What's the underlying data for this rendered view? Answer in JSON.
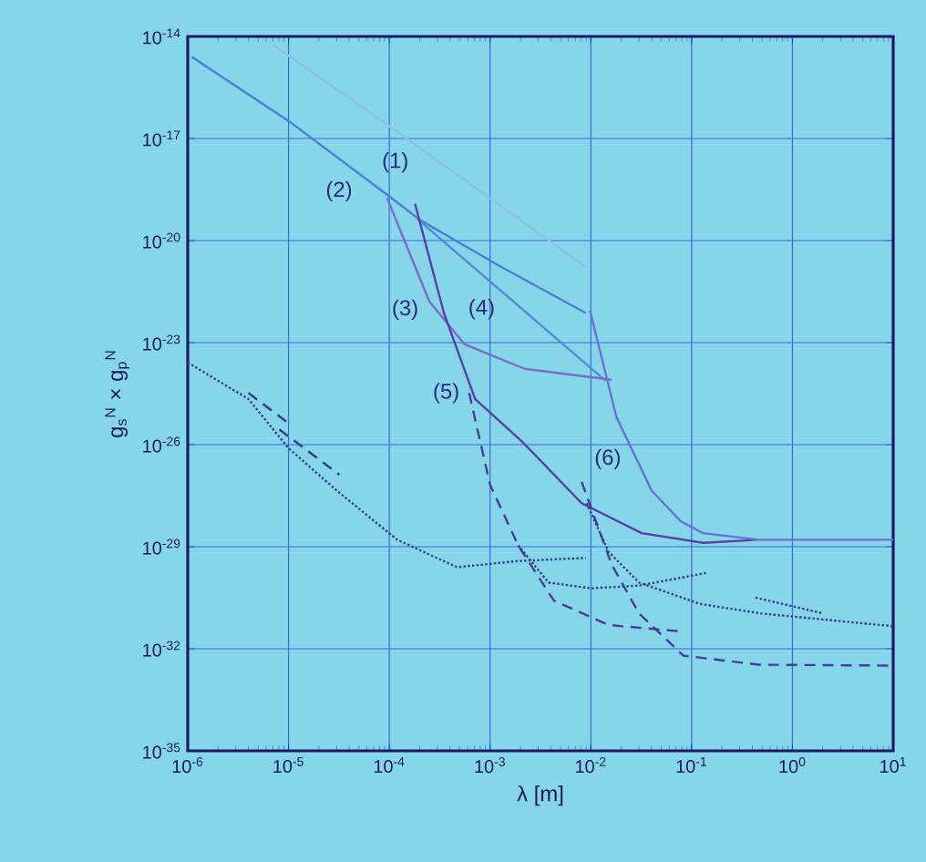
{
  "chart_data": {
    "type": "line",
    "xlabel": "λ [m]",
    "ylabel": "g$_{s}$$^{N}$ × g$_{p}$$^{N}$",
    "log": "xy",
    "grid": true,
    "xlim": [
      1e-06,
      10
    ],
    "ylim": [
      1e-35,
      1e-14
    ],
    "xticks": [
      {
        "value": 1e-06,
        "label": "10$^{-6}$"
      },
      {
        "value": 1e-05,
        "label": "10$^{-5}$"
      },
      {
        "value": 0.0001,
        "label": "10$^{-4}$"
      },
      {
        "value": 0.001,
        "label": "10$^{-3}$"
      },
      {
        "value": 0.01,
        "label": "10$^{-2}$"
      },
      {
        "value": 0.1,
        "label": "10$^{-1}$"
      },
      {
        "value": 1,
        "label": "10$^{0}$"
      },
      {
        "value": 10,
        "label": "10$^{1}$"
      }
    ],
    "yticks": [
      {
        "value": 1e-35,
        "label": "10$^{-35}$"
      },
      {
        "value": 1e-32,
        "label": "10$^{-32}$"
      },
      {
        "value": 1e-29,
        "label": "10$^{-29}$"
      },
      {
        "value": 1e-26,
        "label": "10$^{-26}$"
      },
      {
        "value": 1e-23,
        "label": "10$^{-23}$"
      },
      {
        "value": 1e-20,
        "label": "10$^{-20}$"
      },
      {
        "value": 1e-17,
        "label": "10$^{-17}$"
      },
      {
        "value": 1e-14,
        "label": "10$^{-14}$"
      }
    ],
    "series": [
      {
        "name": "(1)",
        "color": "#8fc0e8",
        "line_style": "solid",
        "x": [
          7.1e-06,
          9.5e-05,
          0.0091
        ],
        "values": [
          5.6e-15,
          2.6e-17,
          1.6e-21
        ]
      },
      {
        "name": "(2)",
        "color": "#4a7fd6",
        "line_style": "solid",
        "x": [
          1.1e-06,
          1e-05,
          8.9e-05,
          0.0002,
          0.0012,
          0.0089
        ],
        "values": [
          2.5e-15,
          3.3e-17,
          2.6e-19,
          4.1e-20,
          1.9e-21,
          7.4e-23
        ]
      },
      {
        "name": "(4)",
        "color": "#5a88d8",
        "line_style": "solid",
        "x": [
          0.00019,
          0.014
        ],
        "values": [
          4.3e-20,
          7.6e-25
        ]
      },
      {
        "name": "(3)",
        "color": "#7a6cc8",
        "line_style": "solid",
        "x": [
          9.5e-05,
          0.00025,
          0.00056,
          0.0022,
          0.016
        ],
        "values": [
          1.8e-19,
          1.6e-22,
          8.9e-24,
          1.7e-24,
          8.1e-25
        ]
      },
      {
        "name": "(5)",
        "color": "#5b3fa8",
        "line_style": "solid",
        "x": [
          0.00018,
          0.00035,
          0.00071,
          0.0021,
          0.0081,
          0.032,
          0.13,
          0.45
        ],
        "values": [
          1.2e-19,
          7.1e-23,
          2.2e-25,
          1.2e-26,
          1.9e-28,
          2.5e-29,
          1.3e-29,
          1.6e-29
        ]
      },
      {
        "name": "(6)",
        "color": "#6a70d8",
        "line_style": "solid",
        "x": [
          0.0098,
          0.018,
          0.027,
          0.04,
          0.078,
          0.13,
          0.47,
          10
        ],
        "values": [
          8.7e-23,
          6.3e-26,
          5.2e-27,
          4.5e-28,
          5.6e-29,
          2.5e-29,
          1.6e-29,
          1.6e-29
        ]
      },
      {
        "color": "#4a3a9a",
        "line_style": "dashed",
        "x": [
          0.00062,
          0.001,
          0.0019,
          0.0043,
          0.015,
          0.083
        ],
        "values": [
          3.3e-25,
          6.6e-28,
          1.1e-29,
          2.6e-31,
          5e-32,
          3.2e-32
        ]
      },
      {
        "color": "#4a3a9a",
        "line_style": "dashed",
        "x": [
          0.0081,
          0.016,
          0.03,
          0.083,
          0.47,
          10
        ],
        "values": [
          8.1e-28,
          3.1e-30,
          1.1e-31,
          6.3e-33,
          3.4e-33,
          3.2e-33
        ]
      },
      {
        "color": "#3a3a8a",
        "line_style": "dotted",
        "x": [
          1e-06,
          4e-06,
          1e-05,
          3e-05,
          0.00012,
          0.00047,
          0.0019,
          0.0089
        ],
        "values": [
          2.6e-24,
          2.2e-25,
          7.9e-27,
          4.5e-28,
          1.6e-29,
          2.5e-30,
          3.8e-30,
          4.7e-30
        ]
      },
      {
        "color": "#3a3a8a",
        "line_style": "dashed",
        "x": [
          4e-06,
          1e-05
        ],
        "values": [
          3.3e-25,
          4.3e-26
        ]
      },
      {
        "color": "#3a3a8a",
        "line_style": "dashed",
        "x": [
          8.1e-06,
          3.2e-05
        ],
        "values": [
          2.8e-26,
          1.3e-27
        ]
      },
      {
        "color": "#3a3a8a",
        "line_style": "dotted",
        "x": [
          0.0019,
          0.0038,
          0.01,
          0.03,
          0.14
        ],
        "values": [
          1.1e-29,
          8.9e-31,
          6e-31,
          7.2e-31,
          1.7e-30
        ]
      },
      {
        "color": "#3a3a8a",
        "line_style": "dotted",
        "x": [
          0.0091,
          0.015,
          0.03,
          0.12,
          0.48,
          10
        ],
        "values": [
          1.9e-28,
          7.1e-30,
          8.9e-31,
          2.1e-31,
          1.1e-31,
          4.6e-32
        ]
      },
      {
        "color": "#3a3a8a",
        "line_style": "dotted",
        "x": [
          0.43,
          2.0
        ],
        "values": [
          3.2e-31,
          1.1e-31
        ]
      }
    ]
  }
}
